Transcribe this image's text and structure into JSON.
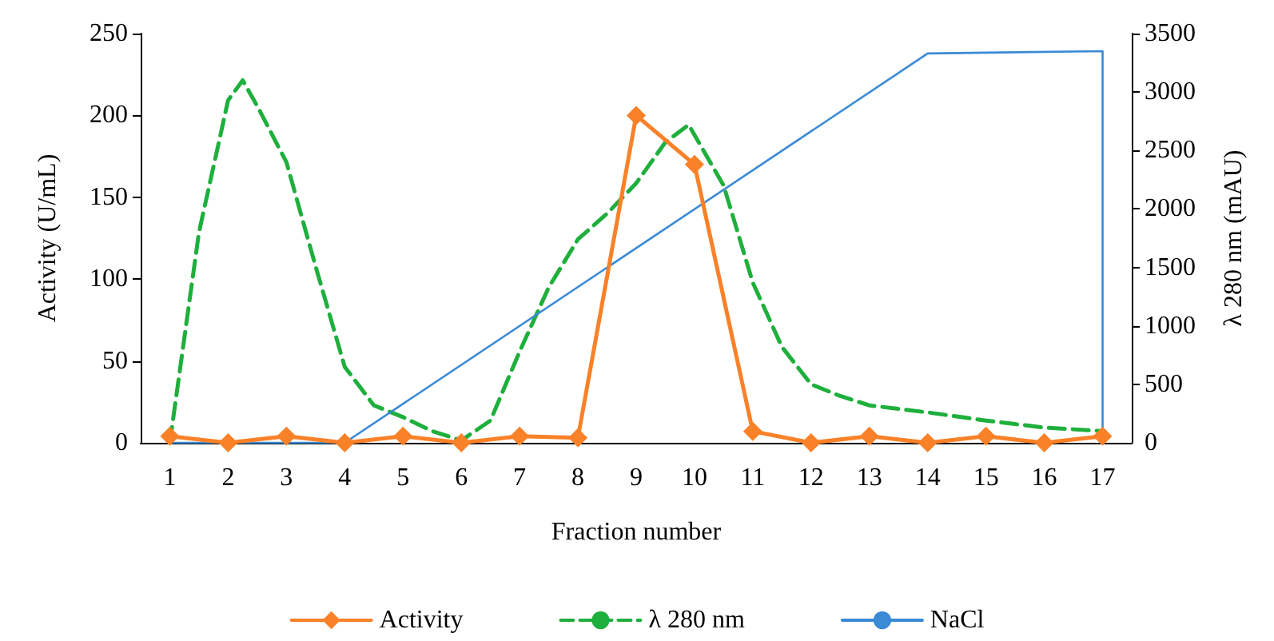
{
  "chart_data": {
    "type": "line",
    "xlabel": "Fraction number",
    "ylabel": "Activity (U/mL)",
    "y2label": "λ 280 nm (mAU)",
    "xlim": [
      0.5,
      17.5
    ],
    "xticks": [
      1,
      2,
      3,
      4,
      5,
      6,
      7,
      8,
      9,
      10,
      11,
      12,
      13,
      14,
      15,
      16,
      17
    ],
    "ylim": [
      0,
      250
    ],
    "yticks": [
      0,
      50,
      100,
      150,
      200,
      250
    ],
    "y2lim": [
      0,
      3500
    ],
    "y2ticks": [
      0,
      500,
      1000,
      1500,
      2000,
      2500,
      3000,
      3500
    ],
    "grid": false,
    "legend": "bottom",
    "series": [
      {
        "name": "Activity",
        "color": "#f98128",
        "marker": "diamond",
        "line_style": "solid",
        "x": [
          1,
          2,
          3,
          4,
          5,
          6,
          7,
          8,
          9,
          10,
          11,
          12,
          13,
          14,
          15,
          16,
          17
        ],
        "values": [
          4,
          0,
          4,
          0,
          4,
          0,
          4,
          3,
          200,
          170,
          7,
          0,
          4,
          0,
          4,
          0,
          4
        ]
      },
      {
        "name": "λ 280 nm",
        "color": "#1eaf3c",
        "marker": "none",
        "line_style": "dashed",
        "axis": "y2",
        "x": [
          1,
          1.5,
          2,
          2.25,
          2.5,
          3,
          3.5,
          4,
          4.5,
          5,
          5.5,
          6,
          6.5,
          7,
          7.5,
          8,
          8.5,
          9,
          9.5,
          9.9,
          10.5,
          11,
          11.5,
          12,
          12.5,
          13,
          14,
          15,
          16,
          17
        ],
        "values": [
          0,
          1800,
          2930,
          3100,
          2880,
          2400,
          1510,
          650,
          320,
          220,
          100,
          20,
          190,
          780,
          1330,
          1740,
          1960,
          2220,
          2570,
          2720,
          2200,
          1370,
          820,
          500,
          400,
          320,
          260,
          190,
          130,
          100
        ]
      },
      {
        "name": "NaCl",
        "color": "#3a8ad6",
        "marker": "none",
        "line_style": "solid",
        "axis": "y2",
        "x": [
          1,
          4,
          14,
          17,
          17
        ],
        "values": [
          0,
          0,
          3330,
          3350,
          0
        ]
      }
    ]
  }
}
